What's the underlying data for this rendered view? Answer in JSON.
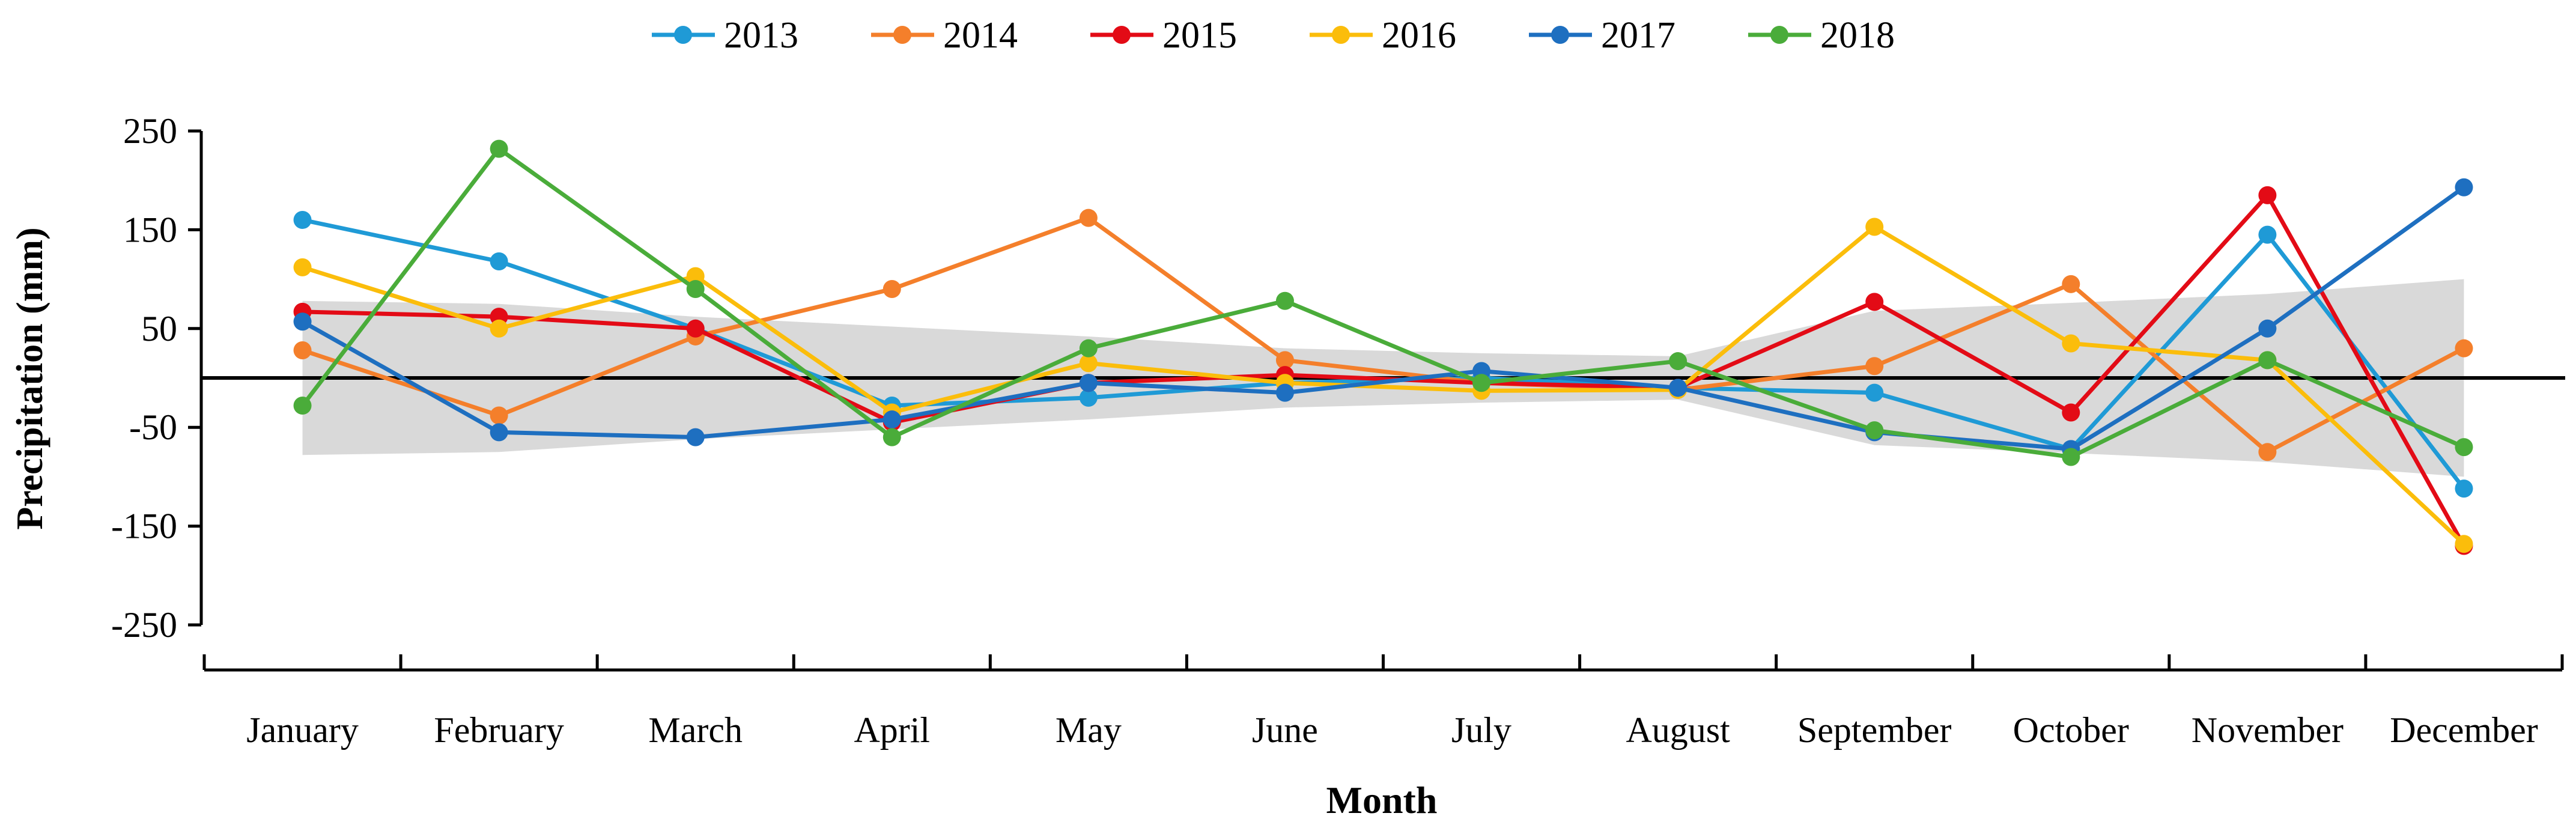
{
  "chart_data": {
    "type": "line",
    "title": "",
    "xlabel": "Month",
    "ylabel": "Precipitation (mm)",
    "ylim": [
      -250,
      250
    ],
    "yticks": [
      250,
      150,
      50,
      -50,
      -150,
      -250
    ],
    "grid": false,
    "legend_position": "top",
    "categories": [
      "January",
      "February",
      "March",
      "April",
      "May",
      "June",
      "July",
      "August",
      "September",
      "October",
      "November",
      "December"
    ],
    "band": {
      "upper": [
        78,
        75,
        62,
        52,
        42,
        30,
        25,
        22,
        68,
        76,
        85,
        100
      ],
      "lower": [
        -78,
        -75,
        -62,
        -52,
        -42,
        -30,
        -25,
        -22,
        -68,
        -76,
        -85,
        -100
      ]
    },
    "series": [
      {
        "name": "2013",
        "color": "#1f9ad6",
        "values": [
          160,
          118,
          50,
          -28,
          -20,
          -5,
          0,
          -10,
          -15,
          -72,
          145,
          -112
        ]
      },
      {
        "name": "2014",
        "color": "#f47f2b",
        "values": [
          28,
          -38,
          42,
          90,
          162,
          18,
          -5,
          -12,
          12,
          95,
          -75,
          30
        ]
      },
      {
        "name": "2015",
        "color": "#e30b16",
        "values": [
          67,
          62,
          50,
          -45,
          -5,
          3,
          -5,
          -10,
          77,
          -35,
          185,
          -170
        ]
      },
      {
        "name": "2016",
        "color": "#fbbd0b",
        "values": [
          112,
          50,
          103,
          -35,
          15,
          -5,
          -13,
          -12,
          153,
          35,
          18,
          -168
        ]
      },
      {
        "name": "2017",
        "color": "#1e6fc0",
        "values": [
          57,
          -55,
          -60,
          -42,
          -5,
          -15,
          7,
          -10,
          -55,
          -72,
          50,
          193
        ]
      },
      {
        "name": "2018",
        "color": "#4aac3a",
        "values": [
          -28,
          232,
          90,
          -60,
          30,
          78,
          -5,
          17,
          -53,
          -80,
          18,
          -70
        ]
      }
    ]
  }
}
